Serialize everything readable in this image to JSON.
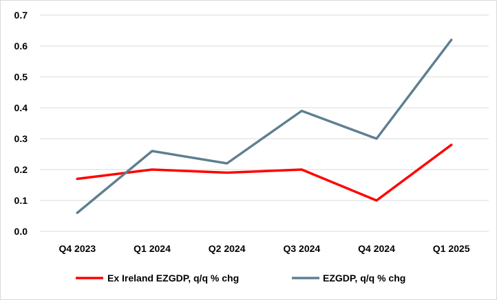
{
  "chart_data": {
    "type": "line",
    "title": "",
    "xlabel": "",
    "ylabel": "",
    "categories": [
      "Q4 2023",
      "Q1 2024",
      "Q2 2024",
      "Q3 2024",
      "Q4 2024",
      "Q1 2025"
    ],
    "ylim": [
      0.0,
      0.7
    ],
    "yticks": [
      "0.0",
      "0.1",
      "0.2",
      "0.3",
      "0.4",
      "0.5",
      "0.6",
      "0.7"
    ],
    "grid": true,
    "legend_position": "bottom",
    "series": [
      {
        "name": "Ex Ireland EZGDP, q/q % chg",
        "color": "#ff0000",
        "values": [
          0.17,
          0.2,
          0.19,
          0.2,
          0.1,
          0.28
        ]
      },
      {
        "name": "EZGDP, q/q % chg",
        "color": "#5f7f91",
        "values": [
          0.06,
          0.26,
          0.22,
          0.39,
          0.3,
          0.62
        ]
      }
    ]
  }
}
